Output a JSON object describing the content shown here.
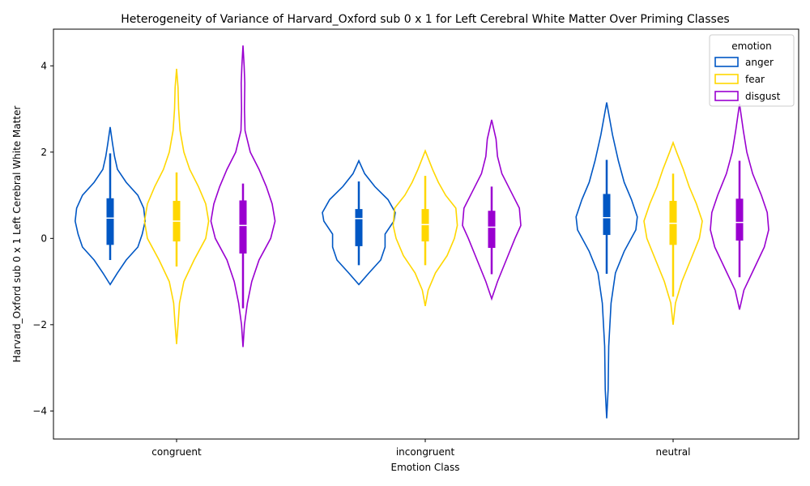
{
  "chart_data": {
    "type": "violin",
    "title": "Heterogeneity of Variance of Harvard_Oxford sub 0 x 1 for Left Cerebral White Matter Over Priming Classes",
    "xlabel": "Emotion Class",
    "ylabel": "Harvard_Oxford sub 0 x 1 Left Cerebral White Matter",
    "categories": [
      "congruent",
      "incongruent",
      "neutral"
    ],
    "ylim": [
      -4.65,
      4.85
    ],
    "yticks": [
      -4,
      -2,
      0,
      2,
      4
    ],
    "yticklabels": [
      "−4",
      "−2",
      "0",
      "2",
      "4"
    ],
    "legend": {
      "title": "emotion",
      "position": "top-right"
    },
    "grid": false,
    "series": [
      {
        "name": "anger",
        "color": "#0057c4",
        "groups": [
          {
            "min": -1.07,
            "max": 2.58,
            "q1": -0.15,
            "median": 0.47,
            "q3": 0.93,
            "whisker_low": -0.5,
            "whisker_high": 1.97,
            "profile": [
              [
                -1.07,
                0.0
              ],
              [
                -0.8,
                0.25
              ],
              [
                -0.5,
                0.55
              ],
              [
                -0.2,
                0.95
              ],
              [
                0.1,
                1.1
              ],
              [
                0.4,
                1.2
              ],
              [
                0.7,
                1.15
              ],
              [
                1.0,
                0.95
              ],
              [
                1.3,
                0.55
              ],
              [
                1.6,
                0.25
              ],
              [
                1.9,
                0.15
              ],
              [
                2.2,
                0.08
              ],
              [
                2.58,
                0.0
              ]
            ]
          },
          {
            "min": -1.07,
            "max": 1.8,
            "q1": -0.18,
            "median": 0.46,
            "q3": 0.68,
            "whisker_low": -0.62,
            "whisker_high": 1.32,
            "profile": [
              [
                -1.07,
                0.0
              ],
              [
                -0.8,
                0.35
              ],
              [
                -0.5,
                0.75
              ],
              [
                -0.2,
                0.9
              ],
              [
                0.1,
                0.9
              ],
              [
                0.4,
                1.2
              ],
              [
                0.6,
                1.25
              ],
              [
                0.9,
                1.0
              ],
              [
                1.2,
                0.55
              ],
              [
                1.5,
                0.2
              ],
              [
                1.8,
                0.0
              ]
            ]
          },
          {
            "min": -4.17,
            "max": 3.15,
            "q1": 0.08,
            "median": 0.48,
            "q3": 1.03,
            "whisker_low": -0.82,
            "whisker_high": 1.82,
            "profile": [
              [
                -4.17,
                0.0
              ],
              [
                -3.5,
                0.05
              ],
              [
                -2.5,
                0.07
              ],
              [
                -1.5,
                0.15
              ],
              [
                -0.8,
                0.3
              ],
              [
                -0.3,
                0.6
              ],
              [
                0.2,
                1.0
              ],
              [
                0.5,
                1.05
              ],
              [
                0.9,
                0.85
              ],
              [
                1.3,
                0.6
              ],
              [
                1.8,
                0.4
              ],
              [
                2.4,
                0.2
              ],
              [
                3.15,
                0.0
              ]
            ]
          }
        ]
      },
      {
        "name": "fear",
        "color": "#ffd700",
        "groups": [
          {
            "min": -2.45,
            "max": 3.93,
            "q1": -0.07,
            "median": 0.4,
            "q3": 0.87,
            "whisker_low": -0.65,
            "whisker_high": 1.53,
            "profile": [
              [
                -2.45,
                0.0
              ],
              [
                -2.0,
                0.05
              ],
              [
                -1.5,
                0.1
              ],
              [
                -1.0,
                0.25
              ],
              [
                -0.5,
                0.6
              ],
              [
                0.0,
                1.0
              ],
              [
                0.4,
                1.1
              ],
              [
                0.8,
                1.0
              ],
              [
                1.2,
                0.75
              ],
              [
                1.6,
                0.45
              ],
              [
                2.0,
                0.25
              ],
              [
                2.5,
                0.12
              ],
              [
                3.0,
                0.07
              ],
              [
                3.5,
                0.05
              ],
              [
                3.93,
                0.0
              ]
            ]
          },
          {
            "min": -1.57,
            "max": 2.03,
            "q1": -0.07,
            "median": 0.32,
            "q3": 0.68,
            "whisker_low": -0.62,
            "whisker_high": 1.45,
            "profile": [
              [
                -1.57,
                0.0
              ],
              [
                -1.2,
                0.1
              ],
              [
                -0.8,
                0.35
              ],
              [
                -0.4,
                0.75
              ],
              [
                0.0,
                1.0
              ],
              [
                0.3,
                1.1
              ],
              [
                0.7,
                1.05
              ],
              [
                1.0,
                0.7
              ],
              [
                1.3,
                0.45
              ],
              [
                1.6,
                0.25
              ],
              [
                2.03,
                0.0
              ]
            ]
          },
          {
            "min": -2.0,
            "max": 2.22,
            "q1": -0.15,
            "median": 0.35,
            "q3": 0.87,
            "whisker_low": -1.35,
            "whisker_high": 1.5,
            "profile": [
              [
                -2.0,
                0.0
              ],
              [
                -1.5,
                0.08
              ],
              [
                -1.0,
                0.3
              ],
              [
                -0.5,
                0.6
              ],
              [
                0.0,
                0.9
              ],
              [
                0.4,
                1.0
              ],
              [
                0.8,
                0.8
              ],
              [
                1.2,
                0.55
              ],
              [
                1.6,
                0.35
              ],
              [
                2.0,
                0.12
              ],
              [
                2.22,
                0.0
              ]
            ]
          }
        ]
      },
      {
        "name": "disgust",
        "color": "#9a00d0",
        "groups": [
          {
            "min": -2.52,
            "max": 4.47,
            "q1": -0.35,
            "median": 0.3,
            "q3": 0.88,
            "whisker_low": -1.62,
            "whisker_high": 1.27,
            "profile": [
              [
                -2.52,
                0.0
              ],
              [
                -2.0,
                0.05
              ],
              [
                -1.5,
                0.15
              ],
              [
                -1.0,
                0.3
              ],
              [
                -0.5,
                0.55
              ],
              [
                0.0,
                0.95
              ],
              [
                0.4,
                1.1
              ],
              [
                0.8,
                1.0
              ],
              [
                1.2,
                0.8
              ],
              [
                1.6,
                0.55
              ],
              [
                2.0,
                0.25
              ],
              [
                2.5,
                0.07
              ],
              [
                3.0,
                0.05
              ],
              [
                3.6,
                0.06
              ],
              [
                4.0,
                0.04
              ],
              [
                4.47,
                0.0
              ]
            ]
          },
          {
            "min": -1.4,
            "max": 2.75,
            "q1": -0.22,
            "median": 0.26,
            "q3": 0.64,
            "whisker_low": -0.83,
            "whisker_high": 1.2,
            "profile": [
              [
                -1.4,
                0.0
              ],
              [
                -1.0,
                0.2
              ],
              [
                -0.5,
                0.5
              ],
              [
                0.0,
                0.8
              ],
              [
                0.3,
                1.0
              ],
              [
                0.7,
                0.95
              ],
              [
                1.1,
                0.65
              ],
              [
                1.5,
                0.35
              ],
              [
                1.9,
                0.2
              ],
              [
                2.3,
                0.15
              ],
              [
                2.75,
                0.0
              ]
            ]
          },
          {
            "min": -1.65,
            "max": 3.12,
            "q1": -0.05,
            "median": 0.37,
            "q3": 0.92,
            "whisker_low": -0.9,
            "whisker_high": 1.8,
            "profile": [
              [
                -1.65,
                0.0
              ],
              [
                -1.2,
                0.15
              ],
              [
                -0.7,
                0.5
              ],
              [
                -0.2,
                0.85
              ],
              [
                0.2,
                1.0
              ],
              [
                0.6,
                0.95
              ],
              [
                1.0,
                0.75
              ],
              [
                1.5,
                0.45
              ],
              [
                2.0,
                0.25
              ],
              [
                2.5,
                0.13
              ],
              [
                3.12,
                0.0
              ]
            ]
          }
        ]
      }
    ]
  }
}
